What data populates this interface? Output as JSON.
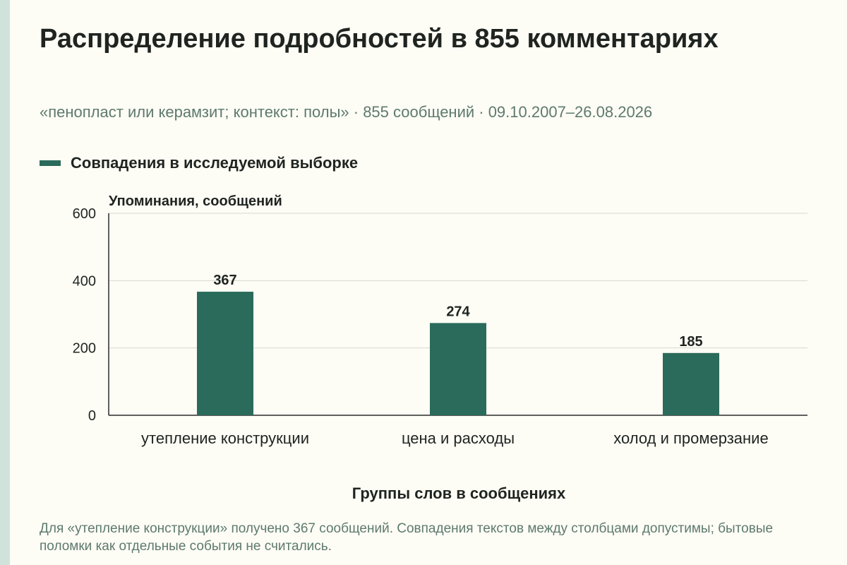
{
  "title": "Распределение подробностей в 855 комментариях",
  "subtitle": "«пенопласт или керамзит; контекст: полы» · 855 сообщений · 09.10.2007–26.08.2026",
  "footnote": "Для «утепление конструкции» получено 367 сообщений. Совпадения текстов между столбцами допустимы; бытовые поломки как отдельные события не считались.",
  "colors": {
    "bar": "#2a6b5b",
    "background": "#fdfcf5",
    "stripe": "#cfe3da",
    "muted_text": "#5e7a6e",
    "grid": "#d9d9cf"
  },
  "chart_data": {
    "type": "bar",
    "categories": [
      "утепление конструкции",
      "цена и расходы",
      "холод и промерзание"
    ],
    "series": [
      {
        "name": "Совпадения в исследуемой выборке",
        "values": [
          367,
          274,
          185
        ]
      }
    ],
    "ylabel": "Упоминания, сообщений",
    "xlabel": "Группы слов в сообщениях",
    "ylim": [
      0,
      600
    ],
    "yticks": [
      0,
      200,
      400,
      600
    ],
    "grid": true,
    "legend_position": "top-left"
  }
}
